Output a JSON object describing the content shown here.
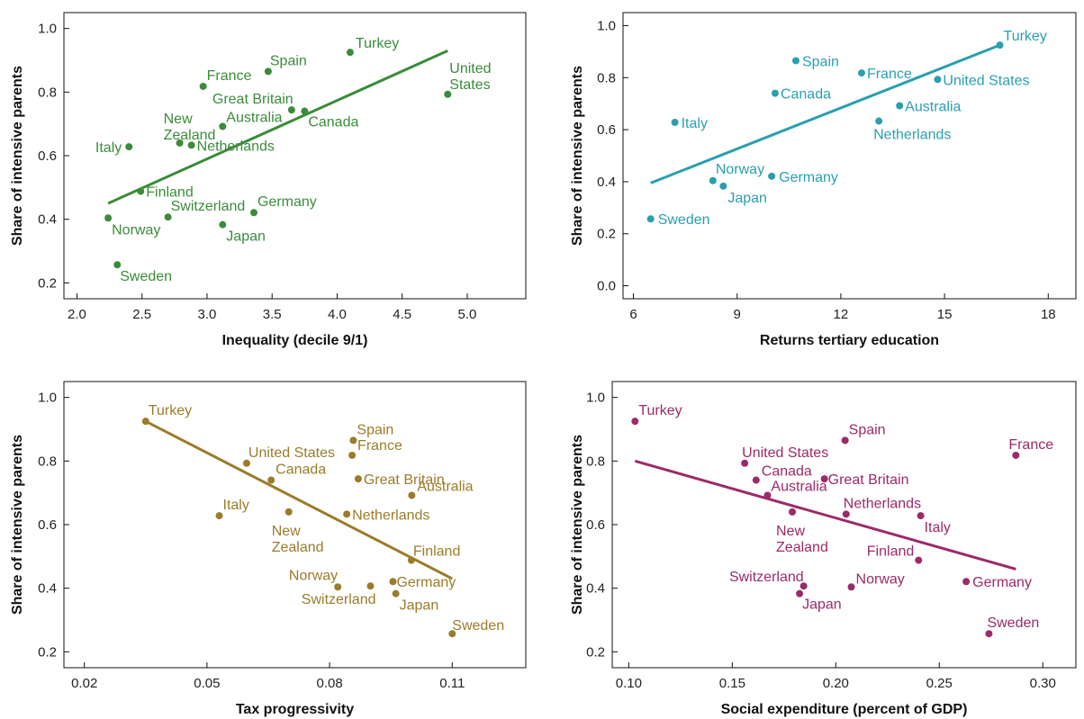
{
  "chart_data": [
    {
      "type": "scatter",
      "xlabel": "Inequality (decile 9/1)",
      "ylabel": "Share of intensive parents",
      "xlim": [
        1.9,
        5.45
      ],
      "ylim": [
        0.15,
        1.05
      ],
      "xticks": [
        "2.0",
        "2.5",
        "3.0",
        "3.5",
        "4.0",
        "4.5",
        "5.0"
      ],
      "xtick_values": [
        2.0,
        2.5,
        3.0,
        3.5,
        4.0,
        4.5,
        5.0
      ],
      "yticks": [
        "0.2",
        "0.4",
        "0.6",
        "0.8",
        "1.0"
      ],
      "ytick_values": [
        0.2,
        0.4,
        0.6,
        0.8,
        1.0
      ],
      "color": "#3a8c3a",
      "trend": [
        [
          2.24,
          0.45
        ],
        [
          4.85,
          0.93
        ]
      ],
      "points": [
        {
          "label": "Turkey",
          "x": 4.1,
          "y": 0.925
        },
        {
          "label": "Spain",
          "x": 3.47,
          "y": 0.865
        },
        {
          "label": "France",
          "x": 2.97,
          "y": 0.818
        },
        {
          "label": "United\nStates",
          "x": 4.85,
          "y": 0.793
        },
        {
          "label": "Great Britain",
          "x": 3.65,
          "y": 0.744
        },
        {
          "label": "Canada",
          "x": 3.75,
          "y": 0.74
        },
        {
          "label": "Australia",
          "x": 3.12,
          "y": 0.692
        },
        {
          "label": "New\nZealand",
          "x": 2.79,
          "y": 0.64
        },
        {
          "label": "Netherlands",
          "x": 2.88,
          "y": 0.633
        },
        {
          "label": "Italy",
          "x": 2.4,
          "y": 0.628
        },
        {
          "label": "Finland",
          "x": 2.49,
          "y": 0.488
        },
        {
          "label": "Switzerland",
          "x": 2.7,
          "y": 0.407
        },
        {
          "label": "Germany",
          "x": 3.36,
          "y": 0.421
        },
        {
          "label": "Norway",
          "x": 2.24,
          "y": 0.404
        },
        {
          "label": "Japan",
          "x": 3.12,
          "y": 0.383
        },
        {
          "label": "Sweden",
          "x": 2.31,
          "y": 0.257
        }
      ]
    },
    {
      "type": "scatter",
      "xlabel": "Returns tertiary education",
      "ylabel": "Share of intensive parents",
      "xlim": [
        5.7,
        18.8
      ],
      "ylim": [
        -0.05,
        1.05
      ],
      "xticks": [
        "6",
        "9",
        "12",
        "15",
        "18"
      ],
      "xtick_values": [
        6,
        9,
        12,
        15,
        18
      ],
      "yticks": [
        "0.0",
        "0.2",
        "0.4",
        "0.6",
        "0.8",
        "1.0"
      ],
      "ytick_values": [
        0.0,
        0.2,
        0.4,
        0.6,
        0.8,
        1.0
      ],
      "color": "#2a9fae",
      "trend": [
        [
          6.5,
          0.395
        ],
        [
          16.6,
          0.925
        ]
      ],
      "points": [
        {
          "label": "Turkey",
          "x": 16.6,
          "y": 0.925
        },
        {
          "label": "Spain",
          "x": 10.7,
          "y": 0.865
        },
        {
          "label": "France",
          "x": 12.6,
          "y": 0.818
        },
        {
          "label": "United States",
          "x": 14.8,
          "y": 0.793
        },
        {
          "label": "Canada",
          "x": 10.1,
          "y": 0.74
        },
        {
          "label": "Australia",
          "x": 13.7,
          "y": 0.692
        },
        {
          "label": "Netherlands",
          "x": 13.1,
          "y": 0.633
        },
        {
          "label": "Italy",
          "x": 7.2,
          "y": 0.628
        },
        {
          "label": "Norway",
          "x": 8.3,
          "y": 0.404
        },
        {
          "label": "Germany",
          "x": 10.0,
          "y": 0.421
        },
        {
          "label": "Japan",
          "x": 8.6,
          "y": 0.383
        },
        {
          "label": "Sweden",
          "x": 6.5,
          "y": 0.257
        }
      ]
    },
    {
      "type": "scatter",
      "xlabel": "Tax progressivity",
      "ylabel": "Share of intensive parents",
      "xlim": [
        0.015,
        0.128
      ],
      "ylim": [
        0.15,
        1.05
      ],
      "xticks": [
        "0.02",
        "0.05",
        "0.08",
        "0.11"
      ],
      "xtick_values": [
        0.02,
        0.05,
        0.08,
        0.11
      ],
      "yticks": [
        "0.2",
        "0.4",
        "0.6",
        "0.8",
        "1.0"
      ],
      "ytick_values": [
        0.2,
        0.4,
        0.6,
        0.8,
        1.0
      ],
      "color": "#9a7c2a",
      "trend": [
        [
          0.035,
          0.925
        ],
        [
          0.11,
          0.43
        ]
      ],
      "points": [
        {
          "label": "Turkey",
          "x": 0.035,
          "y": 0.925
        },
        {
          "label": "Spain",
          "x": 0.0858,
          "y": 0.865
        },
        {
          "label": "France",
          "x": 0.0855,
          "y": 0.818
        },
        {
          "label": "United States",
          "x": 0.0597,
          "y": 0.793
        },
        {
          "label": "Great Britain",
          "x": 0.087,
          "y": 0.744
        },
        {
          "label": "Canada",
          "x": 0.0657,
          "y": 0.74
        },
        {
          "label": "Australia",
          "x": 0.1001,
          "y": 0.692
        },
        {
          "label": "New\nZealand",
          "x": 0.07,
          "y": 0.64
        },
        {
          "label": "Netherlands",
          "x": 0.0842,
          "y": 0.633
        },
        {
          "label": "Italy",
          "x": 0.053,
          "y": 0.628
        },
        {
          "label": "Finland",
          "x": 0.1,
          "y": 0.488
        },
        {
          "label": "Norway",
          "x": 0.082,
          "y": 0.404
        },
        {
          "label": "Germany",
          "x": 0.0955,
          "y": 0.421
        },
        {
          "label": "Switzerland",
          "x": 0.09,
          "y": 0.407
        },
        {
          "label": "Japan",
          "x": 0.0962,
          "y": 0.383
        },
        {
          "label": "Sweden",
          "x": 0.11,
          "y": 0.257
        }
      ]
    },
    {
      "type": "scatter",
      "xlabel": "Social expenditure (percent of GDP)",
      "ylabel": "Share of intensive parents",
      "xlim": [
        0.092,
        0.316
      ],
      "ylim": [
        0.15,
        1.05
      ],
      "xticks": [
        "0.10",
        "0.15",
        "0.20",
        "0.25",
        "0.30"
      ],
      "xtick_values": [
        0.1,
        0.15,
        0.2,
        0.25,
        0.3
      ],
      "yticks": [
        "0.2",
        "0.4",
        "0.6",
        "0.8",
        "1.0"
      ],
      "ytick_values": [
        0.2,
        0.4,
        0.6,
        0.8,
        1.0
      ],
      "color": "#9c2a68",
      "trend": [
        [
          0.103,
          0.8
        ],
        [
          0.287,
          0.46
        ]
      ],
      "points": [
        {
          "label": "Turkey",
          "x": 0.103,
          "y": 0.925
        },
        {
          "label": "Spain",
          "x": 0.2045,
          "y": 0.865
        },
        {
          "label": "France",
          "x": 0.287,
          "y": 0.818
        },
        {
          "label": "United States",
          "x": 0.156,
          "y": 0.793
        },
        {
          "label": "Great Britain",
          "x": 0.1945,
          "y": 0.744
        },
        {
          "label": "Canada",
          "x": 0.1615,
          "y": 0.74
        },
        {
          "label": "Australia",
          "x": 0.167,
          "y": 0.692
        },
        {
          "label": "New\nZealand",
          "x": 0.179,
          "y": 0.64
        },
        {
          "label": "Netherlands",
          "x": 0.205,
          "y": 0.633
        },
        {
          "label": "Italy",
          "x": 0.241,
          "y": 0.628
        },
        {
          "label": "Finland",
          "x": 0.24,
          "y": 0.488
        },
        {
          "label": "Switzerland",
          "x": 0.1845,
          "y": 0.407
        },
        {
          "label": "Japan",
          "x": 0.1825,
          "y": 0.383
        },
        {
          "label": "Norway",
          "x": 0.2075,
          "y": 0.404
        },
        {
          "label": "Germany",
          "x": 0.263,
          "y": 0.421
        },
        {
          "label": "Sweden",
          "x": 0.274,
          "y": 0.257
        }
      ]
    }
  ]
}
